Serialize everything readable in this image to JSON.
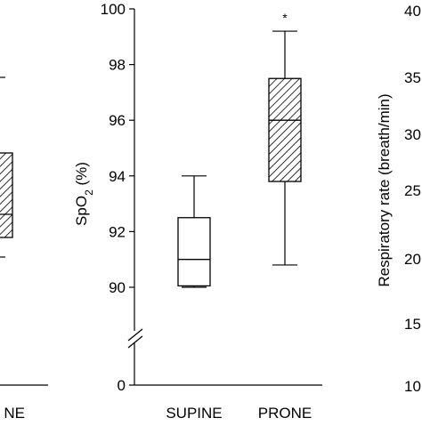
{
  "chart_data": [
    {
      "type": "box",
      "panel": "left (partially visible)",
      "categories": [
        "PRONE"
      ],
      "visible_category_text": "NE",
      "boxes": [
        {
          "category": "PRONE",
          "q1": null,
          "median": null,
          "q3": null,
          "hatched": true
        }
      ]
    },
    {
      "type": "box",
      "panel": "center",
      "title": "",
      "ylabel_main": "SpO",
      "ylabel_sub": "2",
      "ylabel_unit": " (%)",
      "xlabel": "",
      "ylim": [
        90,
        100
      ],
      "y_axis_break": true,
      "break_label": "0",
      "yticks": [
        90,
        92,
        94,
        96,
        98,
        100
      ],
      "categories": [
        "SUPINE",
        "PRONE"
      ],
      "boxes": [
        {
          "category": "SUPINE",
          "whisker_low": 90.0,
          "q1": 90.05,
          "median": 91.0,
          "q3": 92.5,
          "whisker_high": 94.0,
          "hatched": false,
          "significance": ""
        },
        {
          "category": "PRONE",
          "whisker_low": 90.8,
          "q1": 93.8,
          "median": 96.0,
          "q3": 97.5,
          "whisker_high": 99.2,
          "hatched": true,
          "significance": "*"
        }
      ]
    },
    {
      "type": "box",
      "panel": "right (partially visible)",
      "ylabel": "Respiratory rate (breath/min)",
      "ytick_labels_visible": [
        "40",
        "35",
        "30",
        "25",
        "20",
        "15",
        "10"
      ]
    }
  ]
}
